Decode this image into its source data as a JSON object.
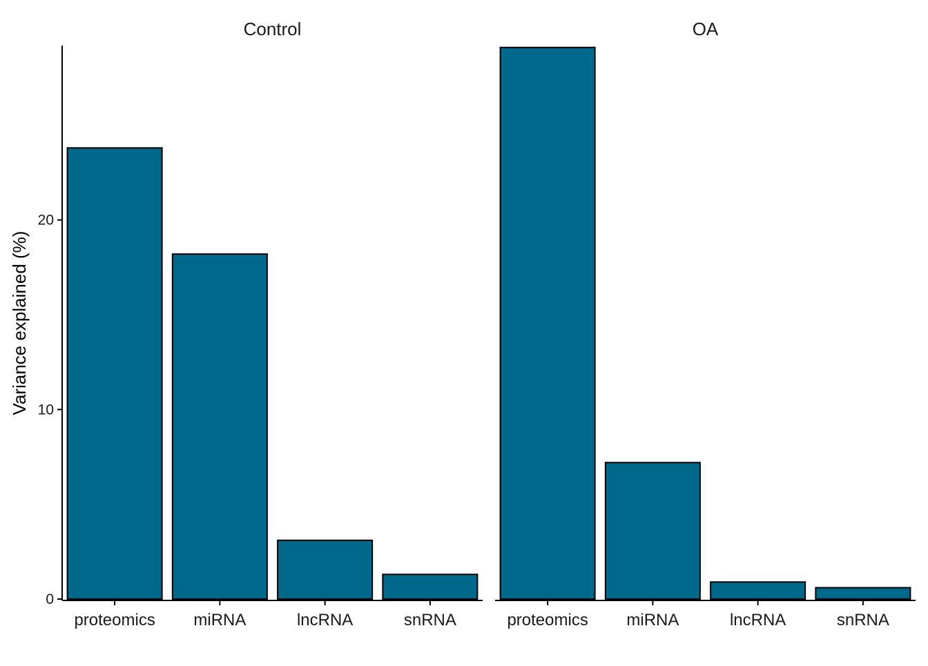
{
  "chart_data": {
    "type": "bar",
    "facets": [
      {
        "name": "Control",
        "categories": [
          "proteomics",
          "miRNA",
          "lncRNA",
          "snRNA"
        ],
        "values": [
          23.8,
          18.2,
          3.1,
          1.3
        ]
      },
      {
        "name": "OA",
        "categories": [
          "proteomics",
          "miRNA",
          "lncRNA",
          "snRNA"
        ],
        "values": [
          29.1,
          7.2,
          0.9,
          0.6
        ]
      }
    ],
    "ylabel": "Variance explained (%)",
    "xlabel": "",
    "yticks": [
      0,
      10,
      20
    ],
    "ylim": [
      0,
      29.2
    ],
    "bar_color": "#00688B",
    "bar_outline": "#000000",
    "grid": false
  }
}
